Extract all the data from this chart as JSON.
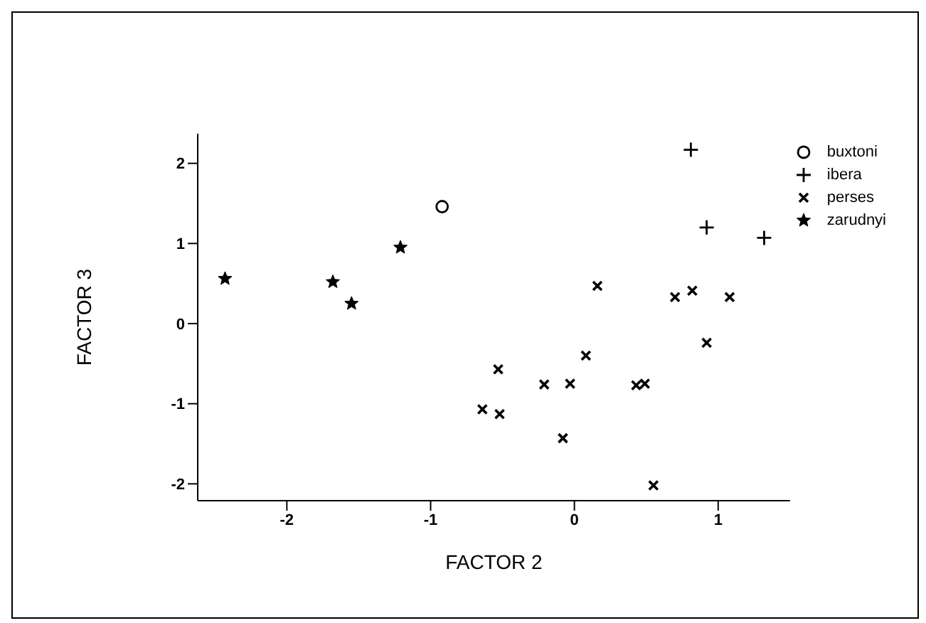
{
  "chart_data": {
    "type": "scatter",
    "xlabel": "FACTOR 2",
    "ylabel": "FACTOR 3",
    "xlim": [
      -2.62,
      1.5
    ],
    "ylim": [
      -2.21,
      2.37
    ],
    "xticks": [
      -2,
      -1,
      0,
      1
    ],
    "yticks": [
      -2,
      -1,
      0,
      1,
      2
    ],
    "grid": false,
    "legend": "right",
    "series": [
      {
        "name": "buxtoni",
        "color": "#000000",
        "marker": "circle",
        "x": [
          -0.92
        ],
        "values": [
          1.46
        ]
      },
      {
        "name": "ibera",
        "color": "#000000",
        "marker": "plus",
        "x": [
          0.81,
          0.92,
          1.32
        ],
        "values": [
          2.17,
          1.2,
          1.07
        ]
      },
      {
        "name": "perses",
        "color": "#000000",
        "marker": "cross",
        "x": [
          -0.64,
          -0.53,
          -0.52,
          -0.21,
          -0.08,
          -0.03,
          0.08,
          0.16,
          0.43,
          0.49,
          0.55,
          0.7,
          0.82,
          0.92,
          1.08
        ],
        "values": [
          -1.07,
          -0.57,
          -1.13,
          -0.76,
          -1.43,
          -0.75,
          -0.4,
          0.47,
          -0.77,
          -0.75,
          -2.02,
          0.33,
          0.41,
          -0.24,
          0.33
        ]
      },
      {
        "name": "zarudnyi",
        "color": "#000000",
        "marker": "star",
        "x": [
          -2.43,
          -1.68,
          -1.55,
          -1.21
        ],
        "values": [
          0.56,
          0.52,
          0.25,
          0.95
        ]
      }
    ]
  }
}
